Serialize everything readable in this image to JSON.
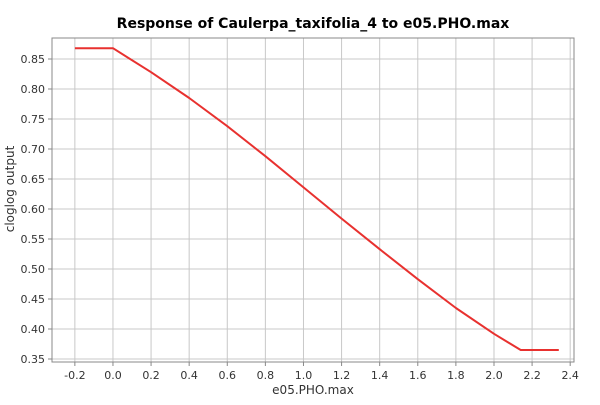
{
  "chart_data": {
    "type": "line",
    "title": "Response of Caulerpa_taxifolia_4 to e05.PHO.max",
    "xlabel": "e05.PHO.max",
    "ylabel": "cloglog output",
    "xlim": [
      -0.32,
      2.42
    ],
    "ylim": [
      0.345,
      0.885
    ],
    "xticks": [
      "-0.2",
      "0.0",
      "0.2",
      "0.4",
      "0.6",
      "0.8",
      "1.0",
      "1.2",
      "1.4",
      "1.6",
      "1.8",
      "2.0",
      "2.2",
      "2.4"
    ],
    "xtick_values": [
      -0.2,
      0.0,
      0.2,
      0.4,
      0.6,
      0.8,
      1.0,
      1.2,
      1.4,
      1.6,
      1.8,
      2.0,
      2.2,
      2.4
    ],
    "yticks": [
      "0.35",
      "0.40",
      "0.45",
      "0.50",
      "0.55",
      "0.60",
      "0.65",
      "0.70",
      "0.75",
      "0.80",
      "0.85"
    ],
    "ytick_values": [
      0.35,
      0.4,
      0.45,
      0.5,
      0.55,
      0.6,
      0.65,
      0.7,
      0.75,
      0.8,
      0.85
    ],
    "grid": true,
    "series": [
      {
        "color": "#e8312f",
        "x": [
          -0.2,
          0.0,
          0.2,
          0.4,
          0.6,
          0.8,
          1.0,
          1.2,
          1.4,
          1.6,
          1.8,
          2.0,
          2.14,
          2.34
        ],
        "y": [
          0.868,
          0.868,
          0.828,
          0.785,
          0.738,
          0.688,
          0.636,
          0.584,
          0.533,
          0.483,
          0.435,
          0.392,
          0.365,
          0.365
        ]
      }
    ]
  }
}
